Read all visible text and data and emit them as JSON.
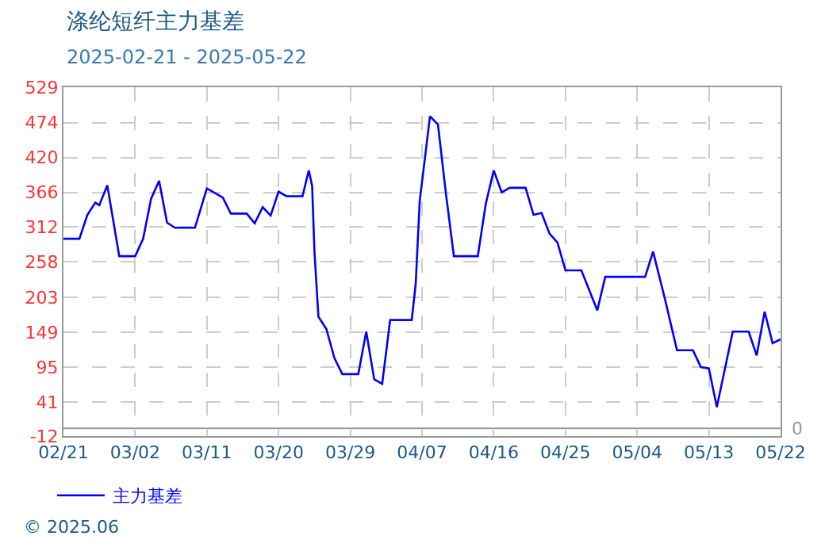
{
  "chart_data": {
    "type": "line",
    "title": "涤纶短纤主力基差",
    "subtitle": "2025-02-21 - 2025-05-22",
    "x": [
      "2025-02-21",
      "2025-02-23",
      "2025-02-24",
      "2025-02-25",
      "2025-02-25T12:00",
      "2025-02-26T12:00",
      "2025-02-28",
      "2025-03-02",
      "2025-03-03",
      "2025-03-04",
      "2025-03-05",
      "2025-03-06",
      "2025-03-07",
      "2025-03-09T12:00",
      "2025-03-11",
      "2025-03-13",
      "2025-03-14",
      "2025-03-16",
      "2025-03-17",
      "2025-03-18",
      "2025-03-19",
      "2025-03-20",
      "2025-03-21",
      "2025-03-23",
      "2025-03-23T19:00",
      "2025-03-24T05:00",
      "2025-03-24T12:00",
      "2025-03-25",
      "2025-03-26",
      "2025-03-27",
      "2025-03-28",
      "2025-03-30",
      "2025-03-31",
      "2025-04-01",
      "2025-04-02",
      "2025-04-03",
      "2025-04-05T17:00",
      "2025-04-06T05:00",
      "2025-04-06T17:00",
      "2025-04-08",
      "2025-04-09",
      "2025-04-10",
      "2025-04-11",
      "2025-04-14",
      "2025-04-15",
      "2025-04-16",
      "2025-04-17",
      "2025-04-18",
      "2025-04-20",
      "2025-04-21",
      "2025-04-22",
      "2025-04-23",
      "2025-04-24",
      "2025-04-25",
      "2025-04-27",
      "2025-04-29",
      "2025-04-30",
      "2025-05-05",
      "2025-05-06",
      "2025-05-07T12:00",
      "2025-05-09",
      "2025-05-11",
      "2025-05-12",
      "2025-05-13",
      "2025-05-14",
      "2025-05-16",
      "2025-05-18",
      "2025-05-19",
      "2025-05-20",
      "2025-05-21",
      "2025-05-22"
    ],
    "series": [
      {
        "name": "主力基差",
        "color": "#0000ff",
        "values": [
          294,
          294,
          331,
          350,
          346,
          377,
          267,
          267,
          294,
          356,
          384,
          319,
          311,
          311,
          372,
          358,
          333,
          333,
          318,
          343,
          330,
          367,
          360,
          360,
          400,
          376,
          274,
          173,
          154,
          109,
          84,
          84,
          150,
          76,
          69,
          168,
          168,
          224,
          352,
          484,
          471,
          364,
          267,
          267,
          348,
          400,
          366,
          373,
          373,
          331,
          334,
          302,
          288,
          245,
          245,
          183,
          235,
          235,
          274,
          200,
          121,
          121,
          95,
          93,
          33,
          150,
          150,
          113,
          181,
          132,
          138
        ]
      }
    ],
    "xlim": [
      "2025-02-21",
      "2025-05-22"
    ],
    "xticks": [
      {
        "value": "2025-02-21",
        "label": "02/21"
      },
      {
        "value": "2025-03-02",
        "label": "03/02"
      },
      {
        "value": "2025-03-11",
        "label": "03/11"
      },
      {
        "value": "2025-03-20",
        "label": "03/20"
      },
      {
        "value": "2025-03-29",
        "label": "03/29"
      },
      {
        "value": "2025-04-07",
        "label": "04/07"
      },
      {
        "value": "2025-04-16",
        "label": "04/16"
      },
      {
        "value": "2025-04-25",
        "label": "04/25"
      },
      {
        "value": "2025-05-04",
        "label": "05/04"
      },
      {
        "value": "2025-05-13",
        "label": "05/13"
      },
      {
        "value": "2025-05-22",
        "label": "05/22"
      }
    ],
    "ylim": [
      -12,
      529
    ],
    "yticks": [
      -12,
      41,
      95,
      149,
      203,
      258,
      312,
      366,
      420,
      474,
      529
    ],
    "ref_lines": [
      {
        "axis": "y",
        "value": 0,
        "label": "0",
        "color": "#999999"
      }
    ],
    "grid": true,
    "legend": "bottom left",
    "marker": "none",
    "line_style": "solid",
    "annotations": [
      "© 2025.06"
    ]
  }
}
